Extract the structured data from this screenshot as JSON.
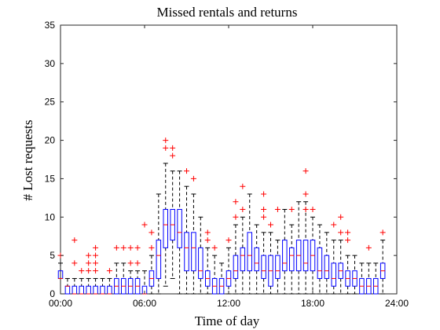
{
  "chart_data": {
    "type": "box",
    "title": "Missed rentals and returns",
    "xlabel": "Time of day",
    "ylabel": "# Lost requests",
    "xlim": [
      0,
      24
    ],
    "ylim": [
      0,
      35
    ],
    "xticks": [
      "00:00",
      "06:00",
      "12:00",
      "18:00",
      "24:00"
    ],
    "yticks": [
      "0",
      "5",
      "10",
      "15",
      "20",
      "25",
      "30",
      "35"
    ],
    "grid": false,
    "colors": {
      "box": "#0000ff",
      "median": "#ff0000",
      "whisker": "#000000",
      "outlier": "#ff0000"
    },
    "boxes": [
      {
        "hour": 0.0,
        "q1": 2,
        "median": 2,
        "q3": 3,
        "low": 2,
        "high": 4,
        "outliers": [
          5
        ]
      },
      {
        "hour": 0.5,
        "q1": 0,
        "median": 1,
        "q3": 1,
        "low": 0,
        "high": 2,
        "outliers": []
      },
      {
        "hour": 1.0,
        "q1": 0,
        "median": 0,
        "q3": 1,
        "low": 0,
        "high": 2,
        "outliers": [
          4,
          7
        ]
      },
      {
        "hour": 1.5,
        "q1": 0,
        "median": 0,
        "q3": 1,
        "low": 0,
        "high": 2,
        "outliers": [
          3
        ]
      },
      {
        "hour": 2.0,
        "q1": 0,
        "median": 0,
        "q3": 1,
        "low": 0,
        "high": 2,
        "outliers": [
          3,
          4,
          5
        ]
      },
      {
        "hour": 2.5,
        "q1": 0,
        "median": 0,
        "q3": 1,
        "low": 0,
        "high": 2,
        "outliers": [
          3,
          4,
          5,
          6
        ]
      },
      {
        "hour": 3.0,
        "q1": 0,
        "median": 0,
        "q3": 1,
        "low": 0,
        "high": 2,
        "outliers": []
      },
      {
        "hour": 3.5,
        "q1": 0,
        "median": 0,
        "q3": 1,
        "low": 0,
        "high": 2,
        "outliers": [
          3
        ]
      },
      {
        "hour": 4.0,
        "q1": 0,
        "median": 1,
        "q3": 2,
        "low": 0,
        "high": 4,
        "outliers": [
          6
        ]
      },
      {
        "hour": 4.5,
        "q1": 0,
        "median": 1,
        "q3": 2,
        "low": 0,
        "high": 4,
        "outliers": [
          6
        ]
      },
      {
        "hour": 5.0,
        "q1": 0,
        "median": 1,
        "q3": 2,
        "low": 0,
        "high": 3,
        "outliers": [
          4,
          6
        ]
      },
      {
        "hour": 5.5,
        "q1": 0,
        "median": 1,
        "q3": 2,
        "low": 0,
        "high": 3,
        "outliers": [
          4,
          6
        ]
      },
      {
        "hour": 6.0,
        "q1": 0,
        "median": 0,
        "q3": 1,
        "low": 0,
        "high": 3,
        "outliers": [
          9
        ]
      },
      {
        "hour": 6.5,
        "q1": 1,
        "median": 2,
        "q3": 3,
        "low": 0,
        "high": 5,
        "outliers": [
          6,
          8
        ]
      },
      {
        "hour": 7.0,
        "q1": 2,
        "median": 5,
        "q3": 7,
        "low": 0,
        "high": 13,
        "outliers": []
      },
      {
        "hour": 7.5,
        "q1": 6,
        "median": 9,
        "q3": 11,
        "low": 1,
        "high": 17,
        "outliers": [
          19,
          20
        ]
      },
      {
        "hour": 8.0,
        "q1": 7,
        "median": 9,
        "q3": 11,
        "low": 2,
        "high": 16,
        "outliers": [
          18,
          19
        ]
      },
      {
        "hour": 8.5,
        "q1": 6,
        "median": 8,
        "q3": 11,
        "low": 0,
        "high": 16,
        "outliers": []
      },
      {
        "hour": 9.0,
        "q1": 3,
        "median": 6,
        "q3": 8,
        "low": 0,
        "high": 14,
        "outliers": [
          16
        ]
      },
      {
        "hour": 9.5,
        "q1": 3,
        "median": 6,
        "q3": 8,
        "low": 0,
        "high": 13,
        "outliers": [
          15
        ]
      },
      {
        "hour": 10.0,
        "q1": 2,
        "median": 3,
        "q3": 6,
        "low": 0,
        "high": 10,
        "outliers": []
      },
      {
        "hour": 10.5,
        "q1": 1,
        "median": 2,
        "q3": 3,
        "low": 0,
        "high": 6,
        "outliers": [
          7,
          8
        ]
      },
      {
        "hour": 11.0,
        "q1": 0,
        "median": 1,
        "q3": 2,
        "low": 0,
        "high": 5,
        "outliers": [
          6
        ]
      },
      {
        "hour": 11.5,
        "q1": 0,
        "median": 1,
        "q3": 2,
        "low": 0,
        "high": 4,
        "outliers": []
      },
      {
        "hour": 12.0,
        "q1": 1,
        "median": 2,
        "q3": 3,
        "low": 0,
        "high": 6,
        "outliers": [
          7
        ]
      },
      {
        "hour": 12.5,
        "q1": 2,
        "median": 3,
        "q3": 5,
        "low": 0,
        "high": 9,
        "outliers": [
          10,
          12
        ]
      },
      {
        "hour": 13.0,
        "q1": 3,
        "median": 5,
        "q3": 6,
        "low": 0,
        "high": 10,
        "outliers": [
          11,
          14
        ]
      },
      {
        "hour": 13.5,
        "q1": 3,
        "median": 5,
        "q3": 8,
        "low": 0,
        "high": 13,
        "outliers": []
      },
      {
        "hour": 14.0,
        "q1": 3,
        "median": 4,
        "q3": 6,
        "low": 0,
        "high": 9,
        "outliers": []
      },
      {
        "hour": 14.5,
        "q1": 2,
        "median": 3,
        "q3": 5,
        "low": 0,
        "high": 8,
        "outliers": [
          10,
          11,
          13
        ]
      },
      {
        "hour": 15.0,
        "q1": 1,
        "median": 3,
        "q3": 5,
        "low": 0,
        "high": 8,
        "outliers": [
          9
        ]
      },
      {
        "hour": 15.5,
        "q1": 2,
        "median": 3,
        "q3": 5,
        "low": 0,
        "high": 7,
        "outliers": [
          11
        ]
      },
      {
        "hour": 16.0,
        "q1": 3,
        "median": 4,
        "q3": 7,
        "low": 0,
        "high": 11,
        "outliers": []
      },
      {
        "hour": 16.5,
        "q1": 3,
        "median": 5,
        "q3": 6,
        "low": 0,
        "high": 9,
        "outliers": [
          11
        ]
      },
      {
        "hour": 17.0,
        "q1": 3,
        "median": 5,
        "q3": 7,
        "low": 0,
        "high": 12,
        "outliers": []
      },
      {
        "hour": 17.5,
        "q1": 3,
        "median": 4,
        "q3": 7,
        "low": 0,
        "high": 12,
        "outliers": [
          11,
          13,
          16
        ]
      },
      {
        "hour": 18.0,
        "q1": 3,
        "median": 5,
        "q3": 7,
        "low": 0,
        "high": 10,
        "outliers": [
          11
        ]
      },
      {
        "hour": 18.5,
        "q1": 2,
        "median": 3,
        "q3": 6,
        "low": 0,
        "high": 9,
        "outliers": []
      },
      {
        "hour": 19.0,
        "q1": 2,
        "median": 3,
        "q3": 5,
        "low": 0,
        "high": 8,
        "outliers": []
      },
      {
        "hour": 19.5,
        "q1": 1,
        "median": 2,
        "q3": 4,
        "low": 0,
        "high": 7,
        "outliers": [
          9
        ]
      },
      {
        "hour": 20.0,
        "q1": 2,
        "median": 3,
        "q3": 4,
        "low": 0,
        "high": 7,
        "outliers": [
          8,
          10
        ]
      },
      {
        "hour": 20.5,
        "q1": 1,
        "median": 2,
        "q3": 3,
        "low": 0,
        "high": 5,
        "outliers": [
          7,
          8
        ]
      },
      {
        "hour": 21.0,
        "q1": 1,
        "median": 2,
        "q3": 3,
        "low": 0,
        "high": 5,
        "outliers": []
      },
      {
        "hour": 21.5,
        "q1": 0,
        "median": 1,
        "q3": 2,
        "low": 0,
        "high": 4,
        "outliers": []
      },
      {
        "hour": 22.0,
        "q1": 0,
        "median": 1,
        "q3": 2,
        "low": 0,
        "high": 4,
        "outliers": [
          6
        ]
      },
      {
        "hour": 22.5,
        "q1": 0,
        "median": 1,
        "q3": 2,
        "low": 0,
        "high": 4,
        "outliers": []
      },
      {
        "hour": 23.0,
        "q1": 2,
        "median": 3,
        "q3": 4,
        "low": 0,
        "high": 7,
        "outliers": [
          8
        ]
      }
    ]
  }
}
